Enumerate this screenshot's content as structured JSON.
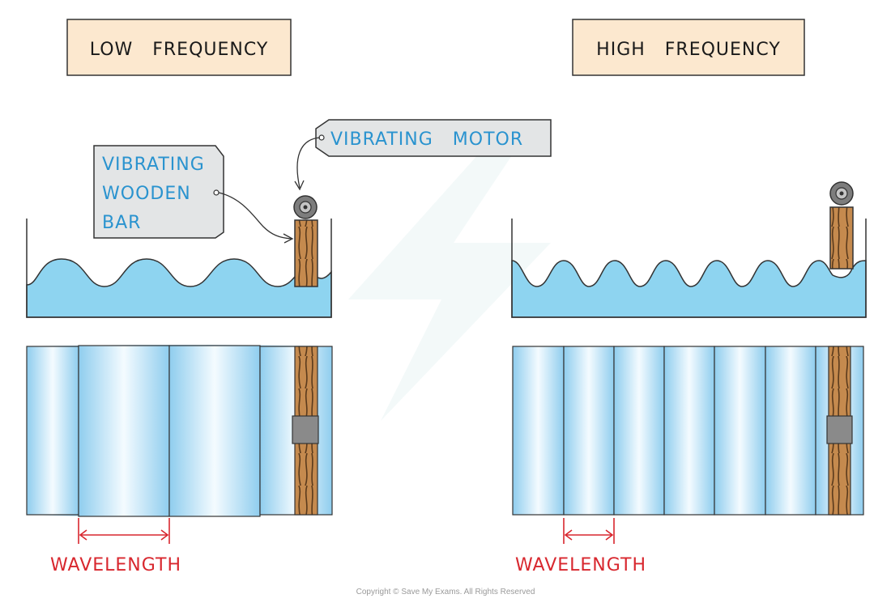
{
  "panels": {
    "left_title": "LOW   FREQUENCY",
    "right_title": "HIGH   FREQUENCY"
  },
  "labels": {
    "motor": "VIBRATING   MOTOR",
    "bar_line1": "VIBRATING",
    "bar_line2": "WOODEN",
    "bar_line3": "BAR",
    "wavelength_left": "WAVELENGTH",
    "wavelength_right": "WAVELENGTH"
  },
  "footer": {
    "copyright": "Copyright © Save My Exams. All Rights Reserved"
  },
  "colors": {
    "header_fill": "#fce8cf",
    "tag_fill": "#e3e5e6",
    "water": "#8ed4f0",
    "wave_dark": "#9fd3ef",
    "wave_light": "#f2faff",
    "wood": "#c58a4e",
    "wavelength": "#d8272e",
    "label_blue": "#2a93cf"
  }
}
